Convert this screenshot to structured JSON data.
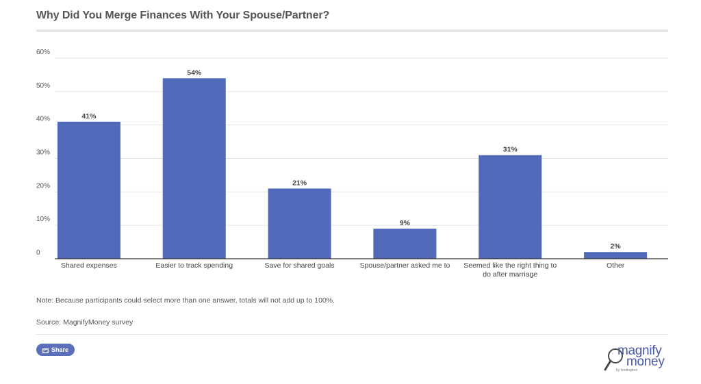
{
  "header": {
    "title": "Why Did You Merge Finances With Your Spouse/Partner?"
  },
  "chart_data": {
    "type": "bar",
    "categories": [
      [
        "Shared expenses"
      ],
      [
        "Easier to track spending"
      ],
      [
        "Save for shared goals"
      ],
      [
        "Spouse/partner asked me to"
      ],
      [
        "Seemed like the right thing to",
        "do after marriage"
      ],
      [
        "Other"
      ]
    ],
    "values": [
      41,
      54,
      21,
      9,
      31,
      2
    ],
    "value_labels": [
      "41%",
      "54%",
      "21%",
      "9%",
      "31%",
      "2%"
    ],
    "y_ticks": [
      0,
      10,
      20,
      30,
      40,
      50,
      60
    ],
    "y_tick_labels": [
      "0",
      "10%",
      "20%",
      "30%",
      "40%",
      "50%",
      "60%"
    ],
    "ylim": [
      0,
      60
    ],
    "grid": true,
    "bar_color": "#5069b8"
  },
  "footer": {
    "note": "Note: Because participants could select more than one answer, totals will not add up to 100%.",
    "source": "Source: MagnifyMoney survey",
    "share_label": "Share",
    "share_icon": "share-icon"
  },
  "logo": {
    "top": "magnify",
    "bottom": "money",
    "sub": "by lendingtree",
    "icon": "magnifying-glass-icon"
  },
  "colors": {
    "bar": "#5069b8",
    "accent": "#5b6eb9",
    "text": "#555555"
  }
}
